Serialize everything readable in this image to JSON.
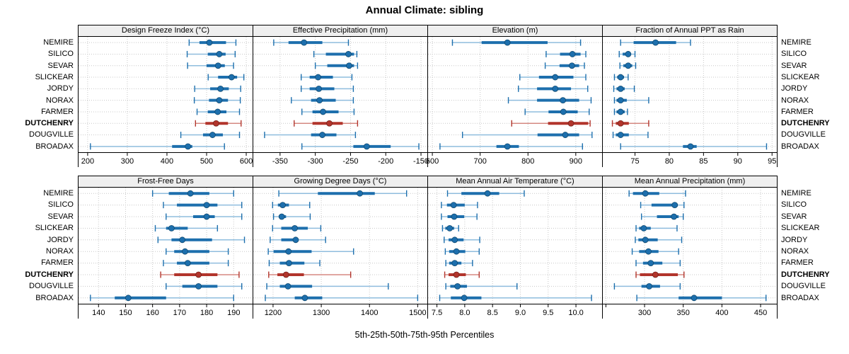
{
  "title": "Annual Climate: sibling",
  "caption": "5th-25th-50th-75th-95th Percentiles",
  "sites": [
    "NEMIRE",
    "SILICO",
    "SEVAR",
    "SLICKEAR",
    "JORDY",
    "NORAX",
    "FARMER",
    "DUTCHENRY",
    "DOUGVILLE",
    "BROADAX"
  ],
  "highlighted_site": "DUTCHENRY",
  "colors": {
    "normal_range": "#8fbdde",
    "normal_bar": "#1d6fad",
    "normal_dot_stroke": "#10496f",
    "highlight_range": "#d58982",
    "highlight_bar": "#b2352c",
    "highlight_dot_stroke": "#74211b",
    "grid": "#c8c8c8",
    "header_bg": "#efefef",
    "border": "#000000"
  },
  "chart_data": {
    "type": "dotplot-percentile-intervals",
    "percentiles": [
      5,
      25,
      50,
      75,
      95
    ],
    "legend_note": "thin line = 5th-95th, thick bar = 25th-75th, dot = 50th percentile",
    "panels": [
      {
        "row": 0,
        "title": "Design Freeze Index (°C)",
        "xlim": [
          177,
          616
        ],
        "ticks": [
          200,
          300,
          400,
          500,
          600
        ],
        "tick_labels": [
          "200",
          "300",
          "400",
          "500",
          "600"
        ],
        "values": [
          [
            456,
            482,
            507,
            549,
            574
          ],
          [
            451,
            503,
            532,
            548,
            572
          ],
          [
            452,
            500,
            529,
            546,
            568
          ],
          [
            504,
            529,
            563,
            577,
            594
          ],
          [
            470,
            509,
            535,
            556,
            586
          ],
          [
            469,
            506,
            532,
            554,
            585
          ],
          [
            476,
            503,
            528,
            550,
            583
          ],
          [
            472,
            497,
            524,
            554,
            587
          ],
          [
            435,
            491,
            515,
            541,
            583
          ],
          [
            207,
            413,
            453,
            464,
            545
          ]
        ]
      },
      {
        "row": 0,
        "title": "Effective Precipitation (mm)",
        "xlim": [
          -388,
          -141
        ],
        "ticks": [
          -350,
          -300,
          -250,
          -200,
          -150
        ],
        "tick_labels": [
          "-350",
          "-300",
          "-250",
          "-200",
          "-150"
        ],
        "values": [
          [
            -359,
            -338,
            -316,
            -290,
            -253
          ],
          [
            -302,
            -285,
            -253,
            -245,
            -241
          ],
          [
            -300,
            -283,
            -252,
            -245,
            -240
          ],
          [
            -320,
            -308,
            -296,
            -275,
            -248
          ],
          [
            -320,
            -308,
            -295,
            -273,
            -246
          ],
          [
            -334,
            -306,
            -294,
            -271,
            -246
          ],
          [
            -319,
            -304,
            -289,
            -267,
            -245
          ],
          [
            -330,
            -304,
            -280,
            -261,
            -240
          ],
          [
            -372,
            -306,
            -290,
            -270,
            -243
          ],
          [
            -319,
            -246,
            -227,
            -193,
            -153
          ]
        ]
      },
      {
        "row": 0,
        "title": "Elevation (m)",
        "xlim": [
          591,
          955
        ],
        "ticks": [
          600,
          700,
          800,
          900
        ],
        "tick_labels": [
          "600",
          "700",
          "800",
          "900"
        ],
        "values": [
          [
            642,
            703,
            757,
            841,
            910
          ],
          [
            838,
            867,
            893,
            910,
            921
          ],
          [
            836,
            866,
            892,
            907,
            918
          ],
          [
            783,
            823,
            857,
            895,
            921
          ],
          [
            780,
            819,
            857,
            890,
            925
          ],
          [
            759,
            819,
            873,
            907,
            932
          ],
          [
            794,
            843,
            874,
            904,
            928
          ],
          [
            766,
            842,
            890,
            926,
            930
          ],
          [
            663,
            820,
            878,
            907,
            934
          ],
          [
            616,
            734,
            757,
            781,
            914
          ]
        ]
      },
      {
        "row": 0,
        "title": "Fraction of Annual PPT as Rain",
        "xlim": [
          70.3,
          95.7
        ],
        "ticks": [
          75,
          80,
          85,
          90,
          95
        ],
        "tick_labels": [
          "75",
          "80",
          "85",
          "90",
          "95"
        ],
        "values": [
          [
            72.9,
            74.8,
            78.0,
            81.0,
            83.1
          ],
          [
            72.7,
            73.2,
            74.0,
            74.4,
            75.0
          ],
          [
            72.8,
            73.3,
            74.0,
            74.6,
            75.1
          ],
          [
            72.0,
            72.4,
            72.9,
            73.4,
            74.0
          ],
          [
            71.9,
            72.3,
            72.9,
            73.5,
            74.9
          ],
          [
            72.0,
            72.3,
            72.9,
            73.8,
            77.0
          ],
          [
            72.0,
            72.3,
            72.9,
            73.5,
            73.9
          ],
          [
            71.7,
            72.2,
            72.9,
            74.1,
            77.0
          ],
          [
            71.8,
            72.2,
            72.9,
            74.1,
            76.9
          ],
          [
            72.9,
            82.0,
            83.1,
            84.0,
            94.2
          ]
        ]
      },
      {
        "row": 1,
        "title": "Frost-Free Days",
        "xlim": [
          132.6,
          197
        ],
        "ticks": [
          140,
          150,
          160,
          170,
          180,
          190
        ],
        "tick_labels": [
          "140",
          "150",
          "160",
          "170",
          "180",
          "190"
        ],
        "values": [
          [
            160,
            166,
            174,
            181,
            190
          ],
          [
            164,
            169,
            180,
            184,
            193
          ],
          [
            165,
            175,
            180,
            183,
            193
          ],
          [
            161,
            165,
            167,
            173,
            184
          ],
          [
            162,
            167,
            171,
            182,
            194
          ],
          [
            165,
            168,
            172,
            181,
            188
          ],
          [
            164,
            169,
            173,
            181,
            188
          ],
          [
            163,
            168,
            177,
            184,
            192
          ],
          [
            165,
            171,
            177,
            184,
            193
          ],
          [
            137,
            146,
            151,
            165,
            190
          ]
        ]
      },
      {
        "row": 1,
        "title": "Growing Degree Days (°C)",
        "xlim": [
          1159,
          1520
        ],
        "ticks": [
          1200,
          1300,
          1400,
          1500
        ],
        "tick_labels": [
          "1200",
          "1300",
          "1400",
          "1500"
        ],
        "values": [
          [
            1212,
            1293,
            1380,
            1411,
            1477
          ],
          [
            1199,
            1210,
            1220,
            1233,
            1276
          ],
          [
            1201,
            1212,
            1218,
            1227,
            1277
          ],
          [
            1199,
            1217,
            1245,
            1272,
            1299
          ],
          [
            1194,
            1217,
            1247,
            1253,
            1309
          ],
          [
            1190,
            1201,
            1232,
            1280,
            1367
          ],
          [
            1192,
            1214,
            1233,
            1265,
            1297
          ],
          [
            1191,
            1209,
            1227,
            1264,
            1361
          ],
          [
            1187,
            1214,
            1231,
            1281,
            1439
          ],
          [
            1184,
            1245,
            1266,
            1302,
            1500
          ]
        ]
      },
      {
        "row": 1,
        "title": "Mean Annual Air Temperature (°C)",
        "xlim": [
          7.34,
          10.47
        ],
        "ticks": [
          7.5,
          8.0,
          8.5,
          9.0,
          9.5,
          10.0
        ],
        "tick_labels": [
          "7.5",
          "8.0",
          "8.5",
          "9.0",
          "9.5",
          "10.0"
        ],
        "values": [
          [
            7.69,
            7.94,
            8.41,
            8.62,
            9.07
          ],
          [
            7.58,
            7.68,
            7.8,
            8.0,
            8.23
          ],
          [
            7.58,
            7.69,
            7.81,
            7.99,
            8.22
          ],
          [
            7.6,
            7.65,
            7.73,
            7.81,
            7.89
          ],
          [
            7.63,
            7.71,
            7.82,
            7.98,
            8.27
          ],
          [
            7.65,
            7.72,
            7.85,
            8.01,
            8.26
          ],
          [
            7.66,
            7.72,
            7.82,
            7.94,
            8.14
          ],
          [
            7.64,
            7.71,
            7.85,
            8.02,
            8.26
          ],
          [
            7.66,
            7.74,
            7.87,
            8.04,
            8.94
          ],
          [
            7.55,
            7.75,
            7.99,
            8.3,
            10.28
          ]
        ]
      },
      {
        "row": 1,
        "title": "Mean Annual Precipitation (mm)",
        "xlim": [
          246,
          471
        ],
        "ticks": [
          250,
          300,
          350,
          400,
          450
        ],
        "tick_labels": [
          "",
          "300",
          "350",
          "400",
          "450"
        ],
        "values": [
          [
            280,
            285,
            301,
            319,
            353
          ],
          [
            295,
            309,
            339,
            343,
            351
          ],
          [
            296,
            316,
            338,
            344,
            350
          ],
          [
            289,
            293,
            299,
            308,
            342
          ],
          [
            288,
            292,
            301,
            317,
            348
          ],
          [
            284,
            293,
            305,
            318,
            344
          ],
          [
            289,
            298,
            308,
            323,
            346
          ],
          [
            289,
            294,
            314,
            343,
            351
          ],
          [
            261,
            296,
            306,
            320,
            346
          ],
          [
            290,
            344,
            364,
            400,
            457
          ]
        ]
      }
    ]
  }
}
